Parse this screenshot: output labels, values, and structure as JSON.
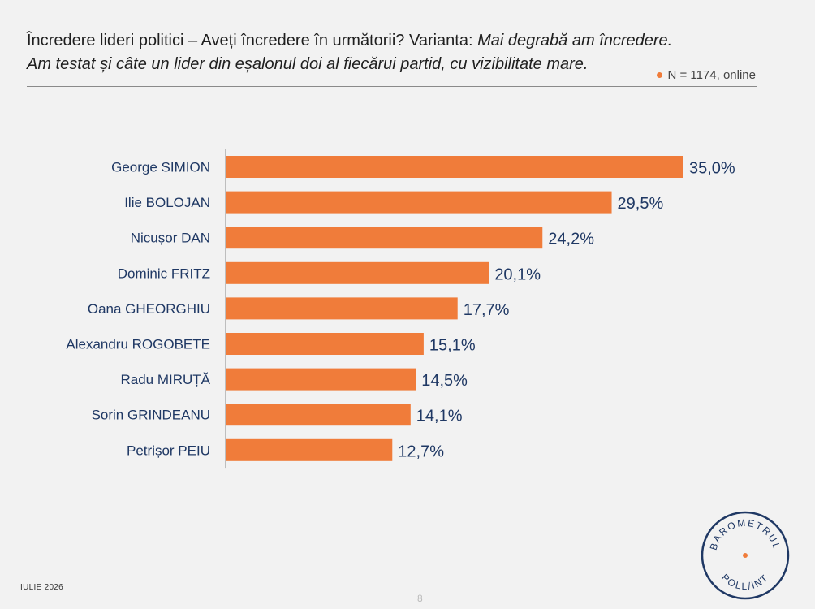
{
  "header": {
    "title_plain": "Încredere lideri politici – Aveți încredere în următorii? Varianta: ",
    "title_italic": "Mai degrabă am încredere.",
    "subtitle_italic": "Am testat și câte un lider din eșalonul doi al fiecărui partid, cu vizibilitate mare.",
    "sample": "N = 1174, online"
  },
  "colors": {
    "bar": "#f07c3a",
    "label": "#1f3864",
    "accent_dot": "#f07c3a",
    "logo": "#1f3864"
  },
  "chart_data": {
    "type": "bar",
    "orientation": "horizontal",
    "categories": [
      "George SIMION",
      "Ilie BOLOJAN",
      "Nicușor DAN",
      "Dominic FRITZ",
      "Oana GHEORGHIU",
      "Alexandru ROGOBETE",
      "Radu MIRUȚĂ",
      "Sorin GRINDEANU",
      "Petrișor PEIU"
    ],
    "values": [
      35.0,
      29.5,
      24.2,
      20.1,
      17.7,
      15.1,
      14.5,
      14.1,
      12.7
    ],
    "value_labels": [
      "35,0%",
      "29,5%",
      "24,2%",
      "20,1%",
      "17,7%",
      "15,1%",
      "14,5%",
      "14,1%",
      "12,7%"
    ],
    "xlim": [
      0,
      35.0
    ],
    "grid": false,
    "legend": "none"
  },
  "footer": {
    "date": "IULIE 2026",
    "page": "8",
    "logo_top": "BAROMETRUL",
    "logo_bottom": "POLL/INT"
  }
}
